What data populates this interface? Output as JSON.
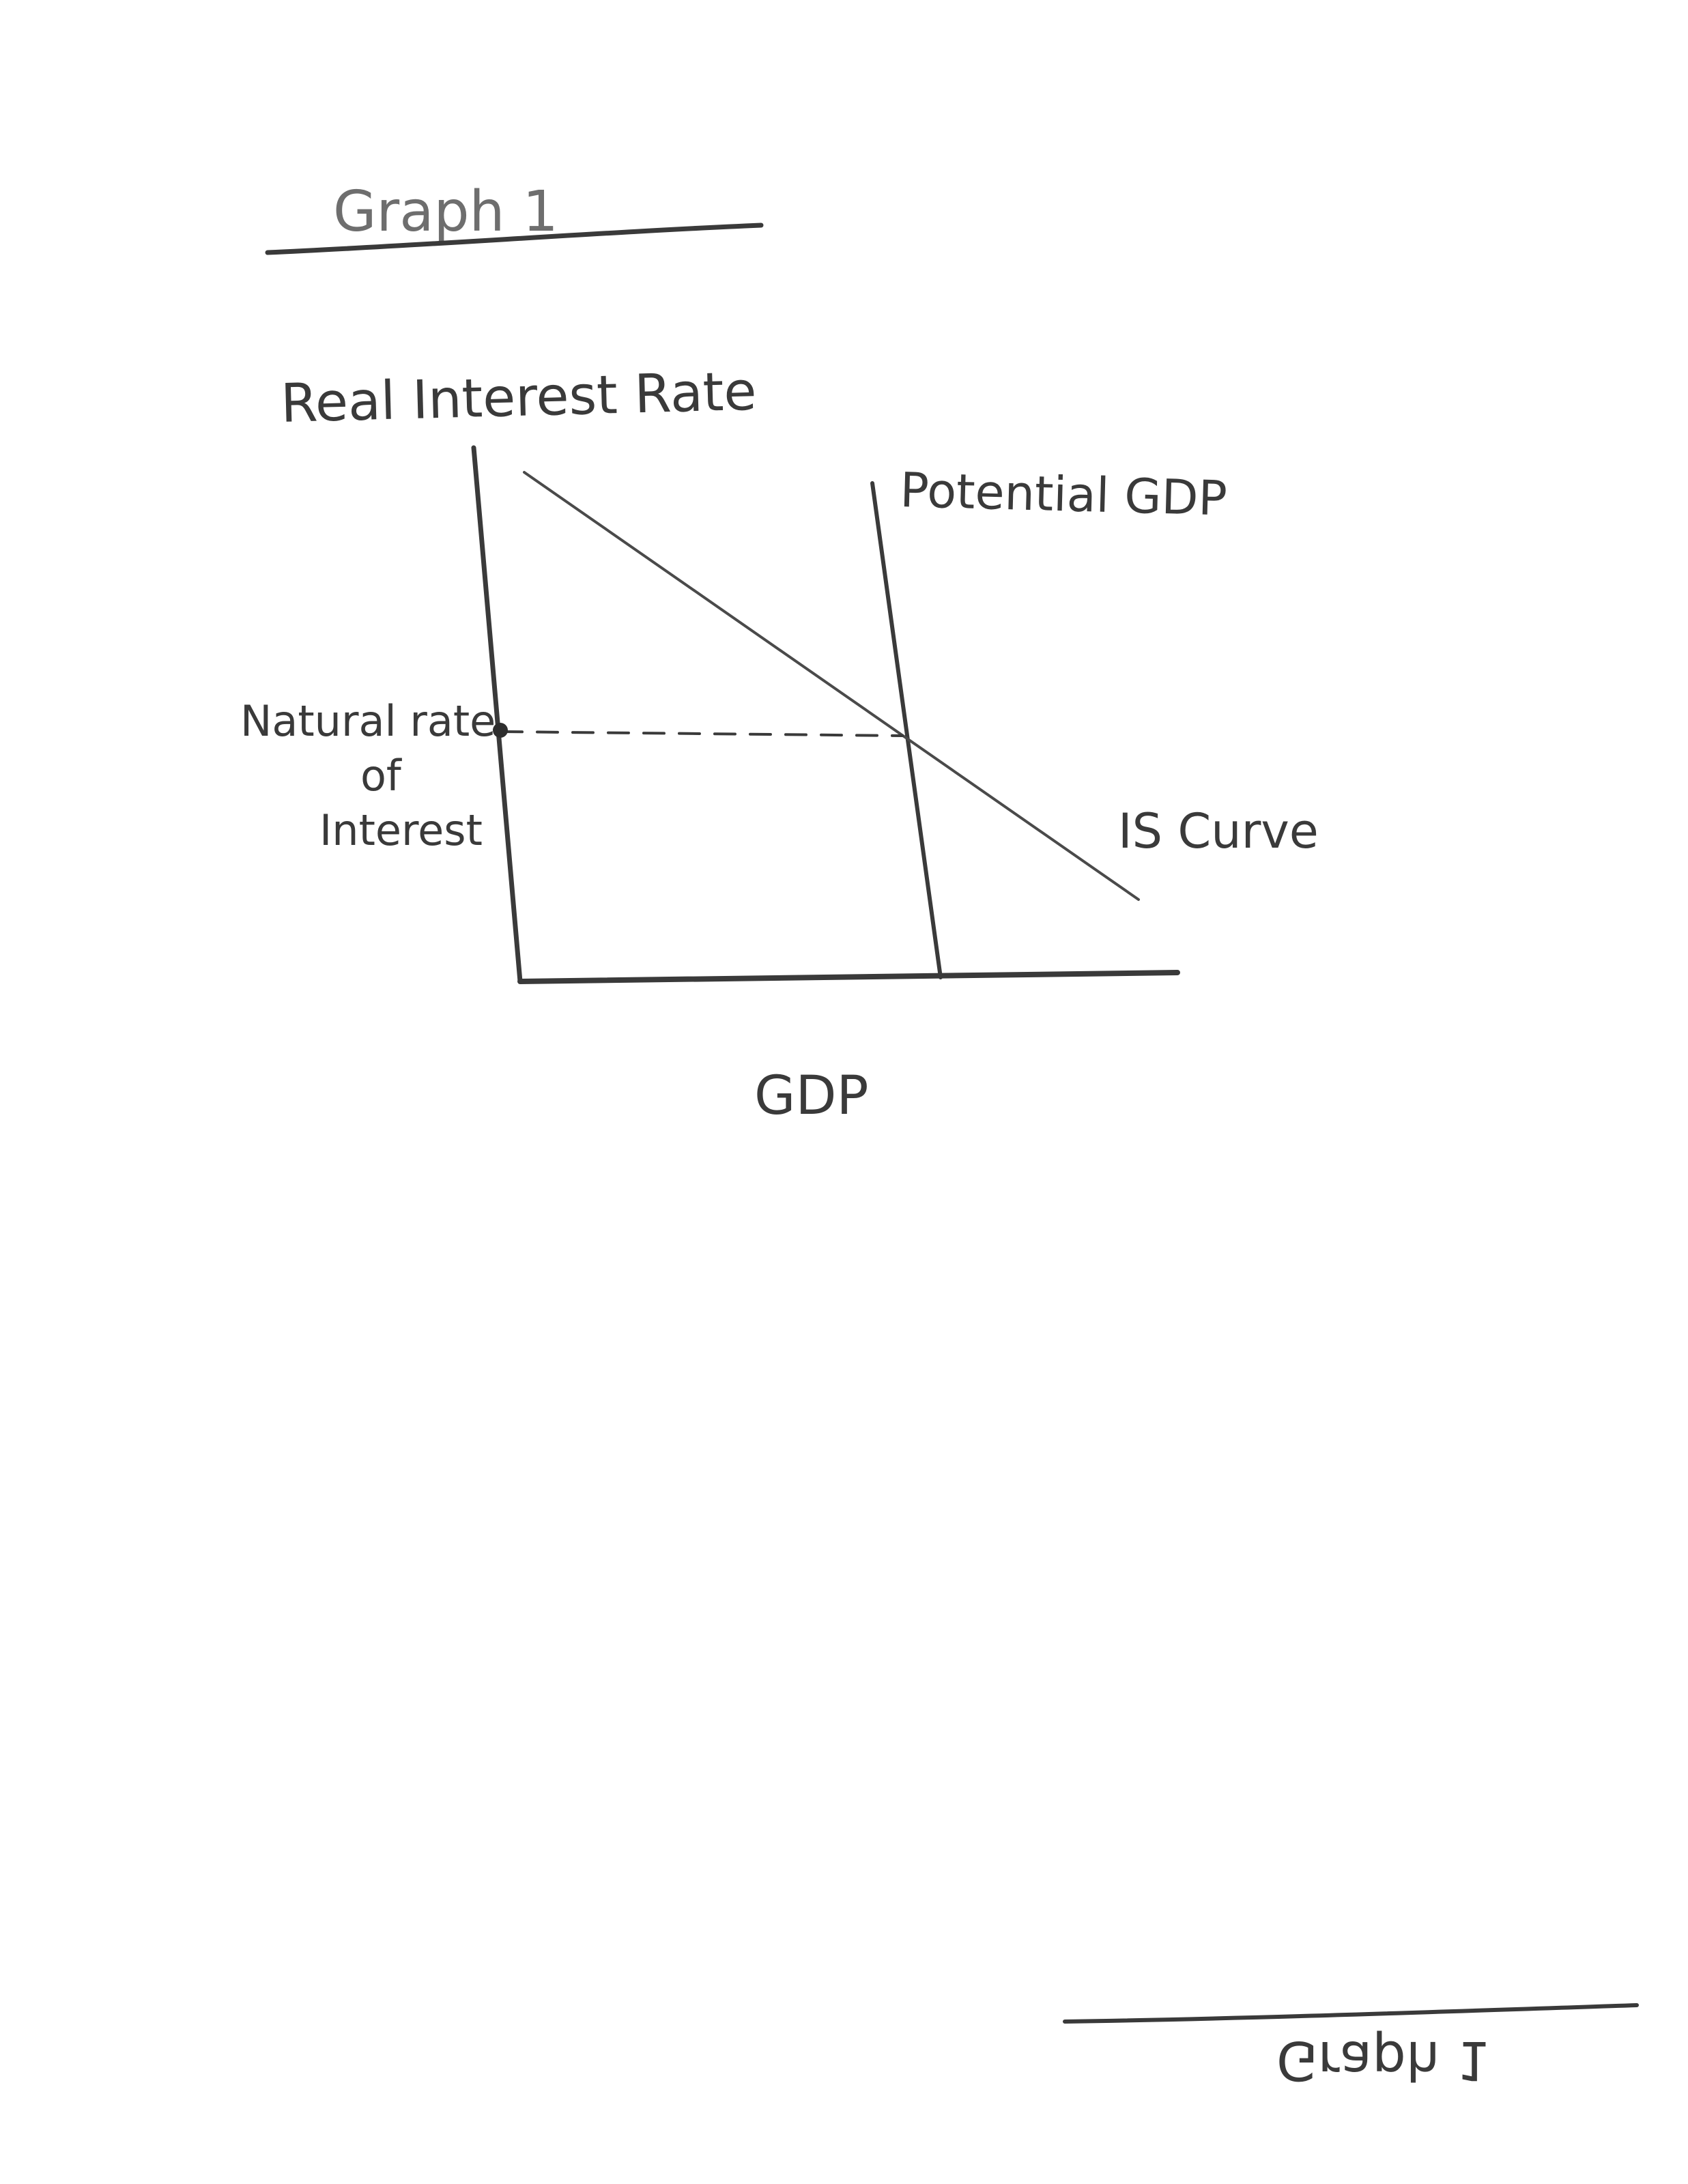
{
  "header": {
    "title": "Graph 1"
  },
  "diagram": {
    "y_axis_label": "Real Interest Rate",
    "x_axis_label": "GDP",
    "potential_gdp_label": "Potential GDP",
    "is_curve_label": "IS Curve",
    "natural_rate_label": {
      "line1": "Natural rate",
      "line2": "of",
      "line3": "Interest"
    },
    "colors": {
      "ink": "#3a3a3a",
      "pencil": "#6e6e6e"
    }
  },
  "footer": {
    "mirrored_title": "Graph 1"
  }
}
